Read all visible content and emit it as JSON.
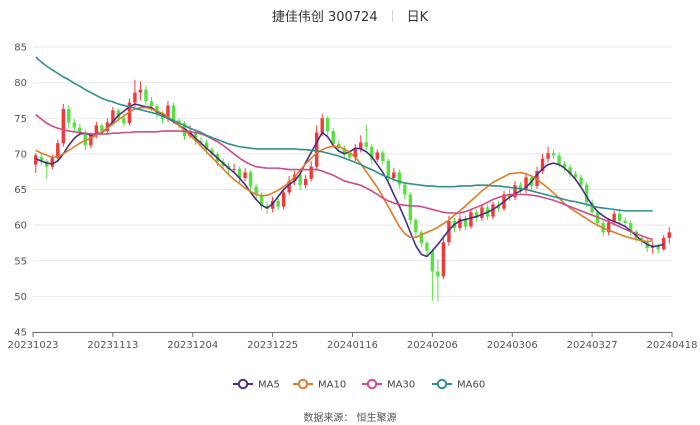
{
  "header": {
    "title": "捷佳伟创 300724",
    "period": "日K"
  },
  "source_text": "数据来源： 恒生聚源",
  "chart_data": {
    "type": "candlestick",
    "x_tick_labels": [
      "20231023",
      "20231113",
      "20231204",
      "20231225",
      "20240116",
      "20240206",
      "20240306",
      "20240327",
      "20240418"
    ],
    "y_ticks": [
      45,
      50,
      55,
      60,
      65,
      70,
      75,
      80,
      85
    ],
    "ylim": [
      45,
      85
    ],
    "grid": true,
    "legend_position": "bottom",
    "colors": {
      "up": "#f03a3a",
      "down": "#55e23f"
    },
    "candles": [
      [
        68.5,
        69.8,
        67.3,
        70.1
      ],
      [
        69.6,
        69.0,
        68.4,
        70.0
      ],
      [
        69.0,
        68.2,
        66.5,
        69.3
      ],
      [
        68.2,
        69.4,
        67.8,
        69.9
      ],
      [
        69.4,
        71.5,
        69.0,
        72.0
      ],
      [
        71.5,
        76.3,
        71.0,
        77.0
      ],
      [
        76.3,
        74.4,
        73.5,
        76.8
      ],
      [
        74.4,
        73.7,
        73.0,
        74.9
      ],
      [
        73.7,
        73.0,
        72.5,
        74.2
      ],
      [
        73.0,
        71.2,
        70.5,
        73.4
      ],
      [
        71.2,
        72.6,
        70.8,
        73.0
      ],
      [
        72.6,
        74.0,
        72.2,
        74.5
      ],
      [
        74.0,
        73.2,
        72.6,
        74.3
      ],
      [
        73.2,
        74.4,
        72.8,
        75.0
      ],
      [
        74.4,
        76.1,
        74.0,
        76.6
      ],
      [
        76.1,
        75.0,
        74.5,
        76.4
      ],
      [
        75.0,
        74.3,
        73.8,
        75.6
      ],
      [
        74.3,
        77.2,
        74.0,
        77.8
      ],
      [
        77.2,
        78.6,
        76.6,
        80.4
      ],
      [
        78.6,
        79.0,
        77.5,
        80.2
      ],
      [
        79.0,
        77.4,
        76.8,
        79.5
      ],
      [
        77.4,
        76.7,
        76.0,
        78.0
      ],
      [
        76.7,
        75.5,
        75.0,
        77.0
      ],
      [
        75.5,
        74.9,
        74.3,
        76.0
      ],
      [
        74.9,
        76.8,
        74.5,
        77.4
      ],
      [
        76.8,
        74.7,
        74.2,
        77.2
      ],
      [
        74.7,
        74.3,
        73.6,
        75.0
      ],
      [
        74.3,
        72.5,
        72.0,
        74.6
      ],
      [
        72.5,
        73.1,
        72.2,
        74.0
      ],
      [
        73.1,
        71.8,
        71.3,
        73.4
      ],
      [
        71.8,
        71.6,
        71.0,
        72.4
      ],
      [
        71.6,
        70.6,
        69.9,
        72.0
      ],
      [
        70.6,
        70.0,
        69.5,
        71.0
      ],
      [
        70.0,
        68.9,
        68.3,
        70.3
      ],
      [
        68.9,
        68.3,
        67.8,
        69.4
      ],
      [
        68.3,
        67.8,
        67.2,
        68.7
      ],
      [
        67.8,
        67.9,
        67.2,
        68.6
      ],
      [
        67.9,
        66.6,
        65.9,
        68.2
      ],
      [
        66.6,
        67.4,
        66.2,
        68.0
      ],
      [
        67.4,
        65.4,
        64.6,
        67.7
      ],
      [
        65.4,
        64.3,
        63.5,
        65.8
      ],
      [
        64.3,
        62.7,
        62.1,
        64.6
      ],
      [
        62.7,
        62.3,
        61.6,
        63.2
      ],
      [
        62.3,
        63.4,
        61.8,
        64.0
      ],
      [
        63.4,
        62.6,
        62.1,
        64.0
      ],
      [
        62.6,
        64.6,
        62.2,
        65.0
      ],
      [
        64.6,
        66.2,
        64.2,
        66.9
      ],
      [
        66.2,
        67.1,
        65.6,
        67.6
      ],
      [
        67.1,
        65.6,
        64.9,
        67.5
      ],
      [
        65.6,
        66.5,
        65.1,
        67.0
      ],
      [
        66.5,
        68.2,
        66.1,
        69.0
      ],
      [
        68.2,
        73.0,
        67.8,
        74.0
      ],
      [
        73.0,
        75.0,
        72.5,
        75.6
      ],
      [
        75.0,
        73.2,
        72.6,
        75.3
      ],
      [
        73.2,
        71.4,
        70.8,
        73.6
      ],
      [
        71.4,
        70.8,
        70.2,
        71.9
      ],
      [
        70.8,
        70.1,
        69.4,
        71.2
      ],
      [
        70.1,
        69.5,
        69.0,
        70.5
      ],
      [
        69.5,
        70.7,
        69.0,
        71.4
      ],
      [
        70.7,
        71.6,
        70.2,
        72.6
      ],
      [
        71.6,
        71.0,
        70.5,
        74.1
      ],
      [
        71.0,
        69.2,
        68.6,
        71.4
      ],
      [
        69.2,
        70.2,
        68.9,
        70.6
      ],
      [
        70.2,
        69.0,
        68.5,
        70.5
      ],
      [
        69.0,
        66.6,
        66.0,
        69.3
      ],
      [
        66.6,
        67.4,
        66.1,
        68.0
      ],
      [
        67.4,
        65.7,
        65.1,
        67.8
      ],
      [
        65.7,
        64.3,
        63.6,
        66.0
      ],
      [
        64.3,
        60.7,
        60.1,
        64.6
      ],
      [
        60.7,
        59.0,
        58.3,
        61.0
      ],
      [
        59.0,
        57.5,
        56.9,
        59.3
      ],
      [
        57.5,
        56.4,
        55.8,
        57.8
      ],
      [
        56.4,
        53.5,
        49.4,
        56.7
      ],
      [
        53.5,
        52.8,
        49.3,
        55.2
      ],
      [
        52.8,
        57.6,
        52.4,
        58.3
      ],
      [
        57.6,
        60.6,
        57.1,
        61.3
      ],
      [
        60.6,
        59.6,
        59.0,
        61.0
      ],
      [
        59.6,
        60.9,
        59.2,
        61.5
      ],
      [
        60.9,
        59.8,
        59.3,
        61.3
      ],
      [
        59.8,
        61.8,
        59.5,
        62.3
      ],
      [
        61.8,
        61.0,
        60.5,
        62.2
      ],
      [
        61.0,
        62.5,
        60.6,
        63.0
      ],
      [
        62.5,
        61.2,
        60.7,
        62.9
      ],
      [
        61.2,
        62.9,
        60.8,
        63.3
      ],
      [
        62.9,
        62.3,
        61.8,
        63.4
      ],
      [
        62.3,
        64.3,
        62.0,
        64.8
      ],
      [
        64.3,
        63.9,
        63.4,
        65.0
      ],
      [
        63.9,
        65.6,
        63.5,
        66.2
      ],
      [
        65.6,
        64.9,
        64.4,
        66.0
      ],
      [
        64.9,
        66.7,
        64.5,
        67.2
      ],
      [
        66.7,
        65.5,
        65.0,
        67.0
      ],
      [
        65.5,
        67.6,
        65.1,
        68.2
      ],
      [
        67.6,
        69.3,
        67.2,
        70.0
      ],
      [
        69.3,
        70.1,
        68.8,
        71.0
      ],
      [
        70.1,
        69.8,
        69.3,
        70.6
      ],
      [
        69.8,
        68.6,
        68.1,
        70.2
      ],
      [
        68.6,
        68.1,
        67.6,
        69.0
      ],
      [
        68.1,
        67.2,
        66.7,
        68.5
      ],
      [
        67.2,
        66.7,
        66.2,
        67.6
      ],
      [
        66.7,
        65.7,
        65.1,
        67.1
      ],
      [
        65.7,
        63.2,
        62.6,
        66.0
      ],
      [
        63.2,
        61.8,
        61.2,
        63.6
      ],
      [
        61.8,
        60.3,
        59.7,
        62.1
      ],
      [
        60.3,
        59.0,
        58.4,
        60.7
      ],
      [
        59.0,
        60.4,
        58.6,
        61.0
      ],
      [
        60.4,
        61.6,
        60.0,
        62.0
      ],
      [
        61.6,
        60.6,
        60.0,
        62.0
      ],
      [
        60.6,
        60.3,
        59.8,
        61.1
      ],
      [
        60.3,
        59.1,
        58.5,
        60.7
      ],
      [
        59.1,
        58.2,
        57.6,
        59.4
      ],
      [
        58.2,
        57.7,
        57.1,
        58.6
      ],
      [
        57.7,
        56.8,
        56.2,
        58.0
      ],
      [
        56.8,
        57.0,
        56.0,
        57.6
      ],
      [
        57.0,
        56.6,
        56.0,
        57.4
      ],
      [
        56.6,
        58.2,
        56.4,
        58.6
      ],
      [
        58.2,
        59.0,
        57.4,
        59.7
      ]
    ],
    "series": [
      {
        "name": "MA5",
        "color": "#4b2e83",
        "values": [
          69.3,
          69.0,
          68.7,
          68.6,
          69.0,
          70.0,
          71.2,
          72.2,
          72.8,
          72.9,
          72.6,
          72.8,
          73.0,
          73.6,
          74.5,
          75.4,
          76.0,
          76.6,
          77.0,
          76.8,
          76.6,
          76.5,
          75.9,
          75.6,
          75.0,
          74.5,
          74.0,
          73.5,
          73.0,
          72.2,
          71.5,
          70.8,
          70.1,
          69.4,
          68.7,
          68.0,
          67.4,
          66.6,
          65.7,
          64.6,
          63.6,
          62.8,
          62.4,
          63.0,
          64.0,
          65.0,
          65.7,
          66.2,
          67.2,
          68.8,
          70.2,
          71.6,
          73.0,
          72.4,
          71.2,
          70.4,
          70.0,
          70.3,
          70.8,
          70.7,
          70.3,
          69.6,
          68.5,
          67.4,
          66.0,
          64.3,
          62.7,
          60.9,
          59.0,
          57.1,
          55.9,
          55.6,
          56.4,
          57.3,
          58.3,
          59.3,
          60.1,
          60.6,
          60.8,
          61.0,
          61.2,
          61.5,
          61.8,
          62.2,
          62.7,
          63.3,
          63.9,
          64.4,
          64.8,
          65.3,
          66.1,
          67.1,
          67.9,
          68.5,
          68.7,
          68.5,
          68.0,
          67.3,
          66.4,
          65.3,
          64.0,
          62.8,
          61.9,
          61.3,
          60.8,
          60.5,
          60.2,
          59.8,
          59.2,
          58.5,
          57.8,
          57.3,
          57.0,
          57.1,
          57.3
        ]
      },
      {
        "name": "MA10",
        "color": "#e07b2a",
        "values": [
          70.5,
          70.1,
          69.8,
          69.5,
          69.6,
          70.0,
          70.5,
          71.0,
          71.5,
          71.9,
          72.2,
          72.6,
          73.1,
          73.6,
          74.2,
          74.8,
          75.3,
          75.9,
          76.3,
          76.5,
          76.5,
          76.3,
          76.0,
          75.7,
          75.2,
          74.6,
          74.0,
          73.3,
          72.6,
          71.9,
          71.1,
          70.3,
          69.5,
          68.7,
          67.9,
          67.1,
          66.4,
          65.8,
          65.2,
          64.7,
          64.3,
          64.1,
          64.2,
          64.5,
          64.9,
          65.4,
          66.0,
          66.8,
          67.7,
          68.6,
          69.4,
          70.1,
          70.6,
          70.9,
          71.1,
          71.0,
          70.7,
          70.2,
          69.5,
          68.6,
          67.5,
          66.4,
          65.3,
          64.0,
          62.6,
          61.2,
          59.8,
          58.8,
          58.3,
          58.3,
          58.6,
          59.0,
          59.3,
          59.7,
          60.2,
          60.7,
          61.4,
          62.0,
          62.7,
          63.4,
          64.1,
          64.8,
          65.4,
          66.0,
          66.4,
          66.8,
          67.2,
          67.3,
          67.4,
          67.2,
          66.9,
          66.4,
          65.8,
          65.2,
          64.5,
          63.8,
          63.0,
          62.4,
          61.9,
          61.4,
          60.9,
          60.4,
          60.0,
          59.6,
          59.3,
          59.0,
          58.7,
          58.4,
          58.2,
          58.0,
          57.8,
          57.7,
          57.8
        ]
      },
      {
        "name": "MA30",
        "color": "#d04a8c",
        "values": [
          75.5,
          74.9,
          74.3,
          73.9,
          73.6,
          73.4,
          73.2,
          73.1,
          73.0,
          72.9,
          72.8,
          72.8,
          72.8,
          72.8,
          72.9,
          72.9,
          73.0,
          73.0,
          73.1,
          73.1,
          73.1,
          73.1,
          73.1,
          73.2,
          73.2,
          73.2,
          73.2,
          73.2,
          73.1,
          73.0,
          72.8,
          72.5,
          72.1,
          71.7,
          71.2,
          70.6,
          70.0,
          69.4,
          68.9,
          68.5,
          68.2,
          68.1,
          68.0,
          68.0,
          68.0,
          67.9,
          67.8,
          67.8,
          67.8,
          67.8,
          67.8,
          67.8,
          67.6,
          67.3,
          67.0,
          66.6,
          66.2,
          66.0,
          65.8,
          65.6,
          65.2,
          64.8,
          64.3,
          63.8,
          63.4,
          63.1,
          62.9,
          62.8,
          62.7,
          62.7,
          62.6,
          62.4,
          62.2,
          62.0,
          61.8,
          61.7,
          61.7,
          61.7,
          61.9,
          62.2,
          62.5,
          62.8,
          63.2,
          63.6,
          63.9,
          64.1,
          64.3,
          64.3,
          64.3,
          64.3,
          64.2,
          64.1,
          63.9,
          63.7,
          63.5,
          63.2,
          62.9,
          62.6,
          62.3,
          62.0,
          61.7,
          61.4,
          61.1,
          60.8,
          60.5,
          60.1,
          59.8,
          59.4,
          59.1,
          58.8,
          58.5,
          58.2,
          58.0
        ]
      },
      {
        "name": "MA60",
        "color": "#2f8f8f",
        "values": [
          83.6,
          82.9,
          82.3,
          81.8,
          81.3,
          80.8,
          80.4,
          79.9,
          79.5,
          79.0,
          78.6,
          78.2,
          77.8,
          77.5,
          77.3,
          77.0,
          76.8,
          76.6,
          76.4,
          76.2,
          76.0,
          75.8,
          75.6,
          75.3,
          75.0,
          74.7,
          74.3,
          74.0,
          73.6,
          73.3,
          73.0,
          72.6,
          72.3,
          72.0,
          71.7,
          71.4,
          71.2,
          71.0,
          70.9,
          70.8,
          70.7,
          70.7,
          70.7,
          70.7,
          70.7,
          70.7,
          70.7,
          70.7,
          70.6,
          70.6,
          70.5,
          70.4,
          70.3,
          70.1,
          69.9,
          69.7,
          69.4,
          69.1,
          68.8,
          68.5,
          68.1,
          67.8,
          67.4,
          67.0,
          66.7,
          66.4,
          66.1,
          65.9,
          65.8,
          65.7,
          65.6,
          65.5,
          65.5,
          65.4,
          65.4,
          65.4,
          65.4,
          65.5,
          65.5,
          65.5,
          65.6,
          65.6,
          65.6,
          65.5,
          65.5,
          65.4,
          65.3,
          65.2,
          65.1,
          65.0,
          64.8,
          64.6,
          64.4,
          64.2,
          64.0,
          63.8,
          63.6,
          63.4,
          63.3,
          63.1,
          62.9,
          62.7,
          62.5,
          62.4,
          62.3,
          62.2,
          62.1,
          62.0,
          62.0,
          62.0,
          62.0,
          62.0,
          62.0
        ]
      }
    ]
  }
}
